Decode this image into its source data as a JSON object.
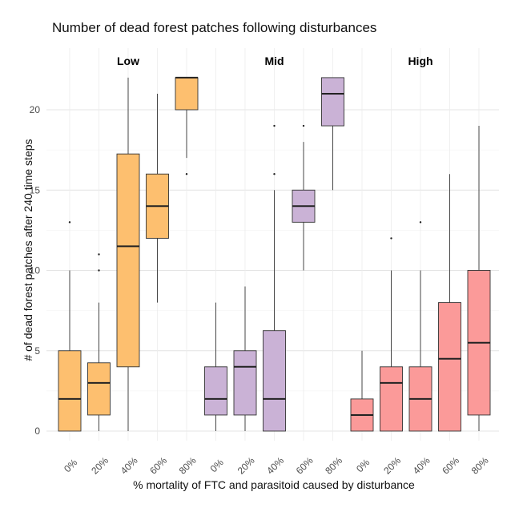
{
  "chart_data": {
    "type": "box",
    "title": "Number of dead forest patches following disturbances",
    "xlabel": "% mortality of FTC and parasitoid caused by disturbance",
    "ylabel": "# of dead forest patches after 240 time steps",
    "ylim": [
      0,
      22
    ],
    "yticks": [
      0,
      5,
      10,
      15,
      20
    ],
    "grid": true,
    "legend": "none",
    "groups": [
      {
        "name": "Low",
        "color": "#FDBF6F",
        "boxes": [
          {
            "label": "0%",
            "min": 0,
            "q1": 0,
            "median": 2,
            "q3": 5,
            "max": 10,
            "outliers": [
              13
            ]
          },
          {
            "label": "20%",
            "min": 0,
            "q1": 1,
            "median": 3,
            "q3": 4.25,
            "max": 8,
            "outliers": [
              10,
              11
            ]
          },
          {
            "label": "40%",
            "min": 0,
            "q1": 4,
            "median": 11.5,
            "q3": 17.25,
            "max": 22,
            "outliers": []
          },
          {
            "label": "60%",
            "min": 8,
            "q1": 12,
            "median": 14,
            "q3": 16,
            "max": 21,
            "outliers": []
          },
          {
            "label": "80%",
            "min": 17,
            "q1": 20,
            "median": 22,
            "q3": 22,
            "max": 22,
            "outliers": [
              16
            ]
          }
        ]
      },
      {
        "name": "Mid",
        "color": "#CAB2D6",
        "boxes": [
          {
            "label": "0%",
            "min": 0,
            "q1": 1,
            "median": 2,
            "q3": 4,
            "max": 8,
            "outliers": []
          },
          {
            "label": "20%",
            "min": 0,
            "q1": 1,
            "median": 4,
            "q3": 5,
            "max": 9,
            "outliers": []
          },
          {
            "label": "40%",
            "min": 0,
            "q1": 0,
            "median": 2,
            "q3": 6.25,
            "max": 15,
            "outliers": [
              16,
              19
            ]
          },
          {
            "label": "60%",
            "min": 10,
            "q1": 13,
            "median": 14,
            "q3": 15,
            "max": 18,
            "outliers": [
              19
            ]
          },
          {
            "label": "80%",
            "min": 15,
            "q1": 19,
            "median": 21,
            "q3": 22,
            "max": 22,
            "outliers": []
          }
        ]
      },
      {
        "name": "High",
        "color": "#FB9A99",
        "boxes": [
          {
            "label": "0%",
            "min": 0,
            "q1": 0,
            "median": 1,
            "q3": 2,
            "max": 5,
            "outliers": []
          },
          {
            "label": "20%",
            "min": 0,
            "q1": 0,
            "median": 3,
            "q3": 4,
            "max": 10,
            "outliers": [
              12
            ]
          },
          {
            "label": "40%",
            "min": 0,
            "q1": 0,
            "median": 2,
            "q3": 4,
            "max": 10,
            "outliers": [
              13
            ]
          },
          {
            "label": "60%",
            "min": 0,
            "q1": 0,
            "median": 4.5,
            "q3": 8,
            "max": 16,
            "outliers": []
          },
          {
            "label": "80%",
            "min": 0,
            "q1": 1,
            "median": 5.5,
            "q3": 10,
            "max": 19,
            "outliers": []
          }
        ]
      }
    ]
  }
}
